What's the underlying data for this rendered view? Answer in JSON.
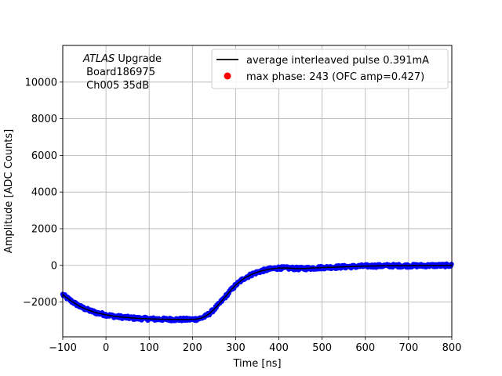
{
  "chart_data": {
    "type": "scatter",
    "title": "",
    "xlabel": "Time [ns]",
    "ylabel": "Amplitude [ADC Counts]",
    "xlim": [
      -100,
      800
    ],
    "ylim": [
      -3900,
      12000
    ],
    "xticks": [
      -100,
      0,
      100,
      200,
      300,
      400,
      500,
      600,
      700,
      800
    ],
    "yticks": [
      -2000,
      0,
      2000,
      4000,
      6000,
      8000,
      10000
    ],
    "xtick_labels": [
      "−100",
      "0",
      "100",
      "200",
      "300",
      "400",
      "500",
      "600",
      "700",
      "800"
    ],
    "ytick_labels": [
      "−2000",
      "0",
      "2000",
      "4000",
      "6000",
      "8000",
      "10000"
    ],
    "grid": true,
    "legend_position": "top-right",
    "annotation": {
      "line1_italic": "ATLAS",
      "line1_rest": " Upgrade",
      "line2": " Board186975",
      "line3": " Ch005 35dB"
    },
    "series": [
      {
        "name": "average interleaved pulse 0.391mA",
        "kind": "line",
        "color": "#000000",
        "x": [
          -100,
          -80,
          -60,
          -40,
          -20,
          0,
          20,
          40,
          60,
          80,
          100,
          120,
          140,
          160,
          180,
          200,
          210,
          220,
          230,
          240,
          250,
          260,
          270,
          280,
          290,
          300,
          310,
          320,
          340,
          360,
          380,
          400,
          420,
          450,
          500,
          550,
          600,
          650,
          700,
          750,
          800
        ],
        "y": [
          -1600,
          -1950,
          -2250,
          -2450,
          -2600,
          -2700,
          -2780,
          -2830,
          -2870,
          -2900,
          -2920,
          -2935,
          -2945,
          -2950,
          -2955,
          -2950,
          -2930,
          -2880,
          -2780,
          -2620,
          -2400,
          -2150,
          -1880,
          -1600,
          -1330,
          -1080,
          -880,
          -700,
          -460,
          -300,
          -200,
          -140,
          -150,
          -180,
          -120,
          -80,
          -40,
          -20,
          -20,
          -10,
          0
        ]
      },
      {
        "name": "",
        "kind": "samples",
        "color": "#0000ff",
        "note_samples": "dense sample points following the average pulse",
        "x": [
          -100,
          -80,
          -60,
          -40,
          -20,
          0,
          20,
          40,
          60,
          80,
          100,
          120,
          140,
          160,
          180,
          200,
          210,
          220,
          230,
          240,
          250,
          260,
          270,
          280,
          290,
          300,
          310,
          320,
          340,
          360,
          380,
          400,
          420,
          450,
          500,
          550,
          600,
          650,
          700,
          750,
          800
        ],
        "y": [
          -1600,
          -1950,
          -2250,
          -2450,
          -2600,
          -2700,
          -2780,
          -2830,
          -2870,
          -2900,
          -2920,
          -2935,
          -2945,
          -2950,
          -2955,
          -2950,
          -2930,
          -2880,
          -2780,
          -2620,
          -2400,
          -2150,
          -1880,
          -1600,
          -1330,
          -1080,
          -880,
          -700,
          -460,
          -300,
          -200,
          -140,
          -150,
          -180,
          -120,
          -80,
          -40,
          -20,
          -20,
          -10,
          0
        ]
      },
      {
        "name": "max phase: 243 (OFC amp=0.427)",
        "kind": "marker",
        "color": "#ff0000"
      }
    ]
  }
}
